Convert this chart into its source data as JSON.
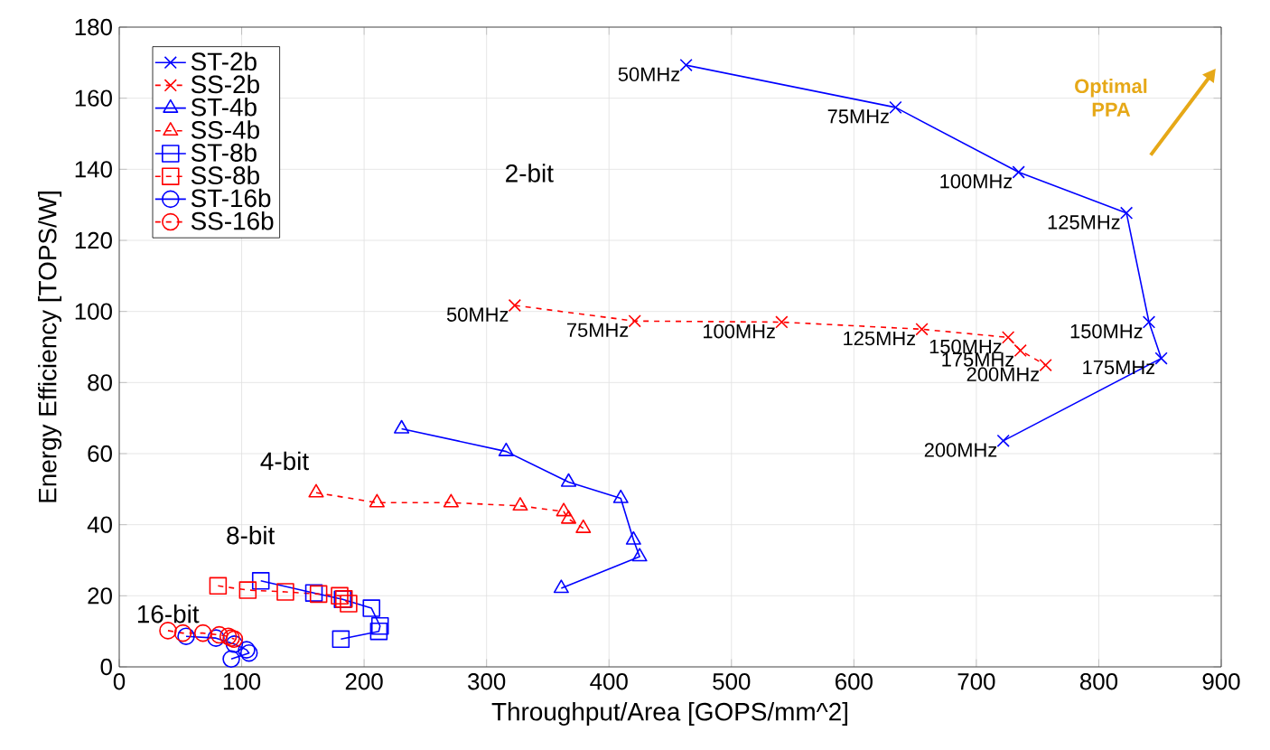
{
  "chart_data": {
    "type": "line",
    "xlabel": "Throughput/Area [GOPS/mm^2]",
    "ylabel": "Energy Efficiency [TOPS/W]",
    "xlim": [
      0,
      900
    ],
    "xticks": [
      0,
      100,
      200,
      300,
      400,
      500,
      600,
      700,
      800,
      900
    ],
    "ylim": [
      0,
      180
    ],
    "yticks": [
      0,
      20,
      40,
      60,
      80,
      100,
      120,
      140,
      160,
      180
    ],
    "grid": true,
    "legend": "top left",
    "series": [
      {
        "name": "ST-2b",
        "color": "#0000ff",
        "marker": "cross",
        "line_style": "solid",
        "x": [
          463,
          634,
          734.5,
          822.6,
          841,
          851,
          722
        ],
        "values": [
          169.3,
          157.4,
          139.2,
          127.7,
          97,
          86.8,
          63.6
        ]
      },
      {
        "name": "SS-2b",
        "color": "#ff0000",
        "marker": "cross",
        "line_style": "dashed",
        "x": [
          323,
          421,
          541,
          655.5,
          726,
          736,
          756.6
        ],
        "values": [
          101.7,
          97.3,
          97,
          95,
          92.7,
          89,
          84.9
        ]
      },
      {
        "name": "ST-4b",
        "color": "#0000ff",
        "marker": "triangle",
        "line_style": "solid",
        "x": [
          230.6,
          316,
          367,
          409.6,
          420,
          425,
          361
        ],
        "values": [
          67,
          60.6,
          52,
          47.4,
          35.7,
          31,
          22.1
        ]
      },
      {
        "name": "SS-4b",
        "color": "#ff0000",
        "marker": "triangle",
        "line_style": "dashed",
        "x": [
          160.8,
          210.5,
          271,
          327.5,
          363,
          367,
          379
        ],
        "values": [
          49,
          46.2,
          46.2,
          45.3,
          43.7,
          41.6,
          39
        ]
      },
      {
        "name": "ST-8b",
        "color": "#0000ff",
        "marker": "square",
        "line_style": "solid",
        "x": [
          115.6,
          159,
          182.4,
          206,
          213,
          212,
          181
        ],
        "values": [
          24.2,
          20.8,
          19,
          16.5,
          11.5,
          10,
          7.8
        ]
      },
      {
        "name": "SS-8b",
        "color": "#ff0000",
        "marker": "square",
        "line_style": "dashed",
        "x": [
          80.7,
          105,
          135.7,
          162.8,
          180,
          183.5,
          187.3
        ],
        "values": [
          22.8,
          21.6,
          21.1,
          20.5,
          20,
          19.1,
          17.8
        ]
      },
      {
        "name": "ST-16b",
        "color": "#0000ff",
        "marker": "circle",
        "line_style": "solid",
        "x": [
          54.6,
          79,
          94,
          104,
          106,
          91.5
        ],
        "values": [
          8.6,
          8.1,
          6.4,
          4.8,
          3.9,
          2.2
        ]
      },
      {
        "name": "SS-16b",
        "color": "#ff0000",
        "marker": "circle",
        "line_style": "dashed",
        "x": [
          39.8,
          52,
          68.4,
          81.7,
          89,
          91.5,
          94
        ],
        "values": [
          10.2,
          9.5,
          9.5,
          9,
          8.6,
          8.1,
          7.8
        ]
      }
    ],
    "annotations": [
      {
        "text": "50MHz",
        "x": 463,
        "y": 169.3
      },
      {
        "text": "75MHz",
        "x": 634,
        "y": 157.4
      },
      {
        "text": "100MHz",
        "x": 734.5,
        "y": 139.2
      },
      {
        "text": "125MHz",
        "x": 822.6,
        "y": 127.7
      },
      {
        "text": "150MHz",
        "x": 841,
        "y": 97
      },
      {
        "text": "175MHz",
        "x": 851,
        "y": 86.8
      },
      {
        "text": "200MHz",
        "x": 722,
        "y": 63.6
      },
      {
        "text": "50MHz",
        "x": 323,
        "y": 101.7
      },
      {
        "text": "75MHz",
        "x": 421,
        "y": 97.3
      },
      {
        "text": "100MHz",
        "x": 541,
        "y": 97
      },
      {
        "text": "125MHz",
        "x": 655.5,
        "y": 95
      },
      {
        "text": "150MHz",
        "x": 726,
        "y": 92.7
      },
      {
        "text": "175MHz",
        "x": 736,
        "y": 89
      },
      {
        "text": "200MHz",
        "x": 756.6,
        "y": 84.9
      },
      "2-bit",
      "4-bit",
      "8-bit",
      "16-bit",
      "Optimal PPA"
    ]
  }
}
